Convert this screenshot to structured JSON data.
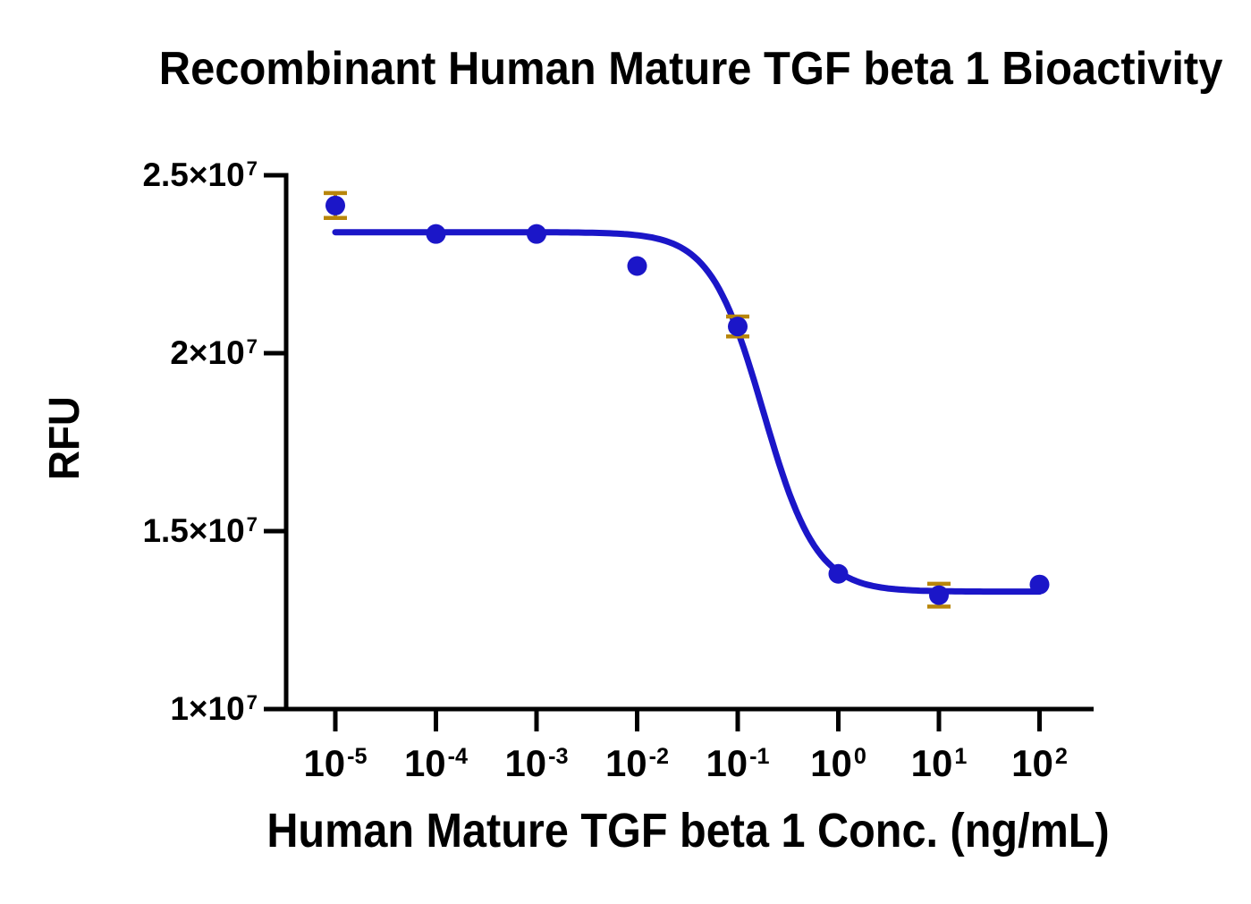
{
  "chart_data": {
    "type": "scatter",
    "title": "Recombinant Human Mature TGF beta 1 Bioactivity",
    "xlabel": "Human Mature TGF beta 1 Conc. (ng/mL)",
    "ylabel": "RFU",
    "x_scale": "log10",
    "xlim_log10": [
      -5,
      2
    ],
    "ylim": [
      10000000,
      25000000
    ],
    "grid": false,
    "legend": "none",
    "x_ticks": [
      {
        "base": "10",
        "exp": -5,
        "value": 1e-05
      },
      {
        "base": "10",
        "exp": -4,
        "value": 0.0001
      },
      {
        "base": "10",
        "exp": -3,
        "value": 0.001
      },
      {
        "base": "10",
        "exp": -2,
        "value": 0.01
      },
      {
        "base": "10",
        "exp": -1,
        "value": 0.1
      },
      {
        "base": "10",
        "exp": 0,
        "value": 1
      },
      {
        "base": "10",
        "exp": 1,
        "value": 10
      },
      {
        "base": "10",
        "exp": 2,
        "value": 100
      }
    ],
    "y_ticks": [
      {
        "base": "2.5×10",
        "exp": 7,
        "value": 25000000
      },
      {
        "base": "2×10",
        "exp": 7,
        "value": 20000000
      },
      {
        "base": "1.5×10",
        "exp": 7,
        "value": 15000000
      },
      {
        "base": "1×10",
        "exp": 7,
        "value": 10000000
      }
    ],
    "series": [
      {
        "name": "Human Mature TGF beta 1",
        "points": [
          {
            "conc_ng_ml": 1e-05,
            "rfu": 24150000,
            "err": 350000
          },
          {
            "conc_ng_ml": 0.0001,
            "rfu": 23350000,
            "err": null
          },
          {
            "conc_ng_ml": 0.001,
            "rfu": 23350000,
            "err": null
          },
          {
            "conc_ng_ml": 0.01,
            "rfu": 22450000,
            "err": null
          },
          {
            "conc_ng_ml": 0.1,
            "rfu": 20750000,
            "err": 280000
          },
          {
            "conc_ng_ml": 1,
            "rfu": 13800000,
            "err": null
          },
          {
            "conc_ng_ml": 10,
            "rfu": 13200000,
            "err": 320000
          },
          {
            "conc_ng_ml": 100,
            "rfu": 13500000,
            "err": null
          }
        ]
      }
    ],
    "curve_fit": {
      "model": "4PL",
      "top": 23400000,
      "bottom": 13300000,
      "ec50_ng_ml": 0.18,
      "hill_slope": 1.65
    },
    "colors": {
      "curve": "#1b16c8",
      "point": "#1b16c8",
      "error_bar": "#b8860b",
      "axis": "#000000",
      "text": "#000000",
      "background": "#ffffff"
    }
  }
}
